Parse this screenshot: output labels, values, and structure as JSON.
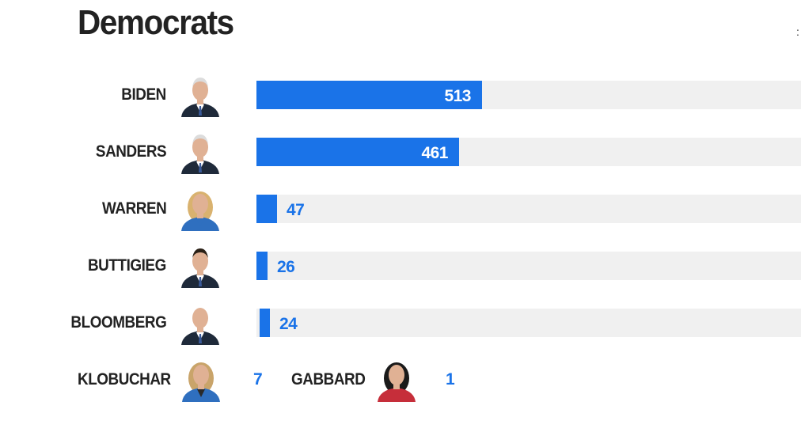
{
  "chart_data": {
    "type": "bar",
    "title": "Democrats",
    "orientation": "horizontal",
    "categories": [
      "BIDEN",
      "SANDERS",
      "WARREN",
      "BUTTIGIEG",
      "BLOOMBERG"
    ],
    "values": [
      513,
      461,
      47,
      26,
      24
    ],
    "xlim": [
      0,
      1240
    ],
    "extra_rows": [
      {
        "label": "KLOBUCHAR",
        "value": 7
      },
      {
        "label": "GABBARD",
        "value": 1
      }
    ]
  },
  "colors": {
    "bar": "#1a73e8",
    "track": "#f0f0f0",
    "label": "#222222",
    "suit": "#1f2a3a",
    "blazer": "#2f6fbf",
    "red_top": "#c62e3a",
    "skin": "#e0b194"
  },
  "icons": {
    "candidate_photo": "person-portrait-icon"
  },
  "edge_mark": ":"
}
